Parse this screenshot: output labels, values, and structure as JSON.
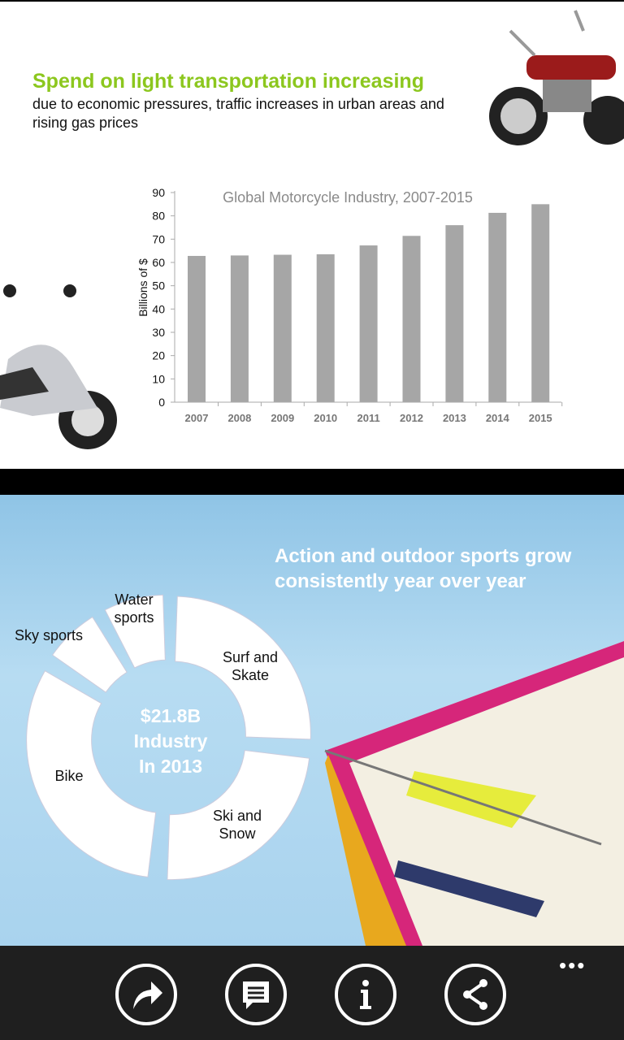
{
  "slide1": {
    "headline": "Spend on light transportation increasing",
    "subtitle": "due to economic pressures, traffic increases in urban areas and rising gas prices"
  },
  "chart_data": {
    "type": "bar",
    "title": "Global Motorcycle Industry, 2007-2015",
    "xlabel": "",
    "ylabel": "Billions of $",
    "ylim": [
      0,
      90
    ],
    "yticks": [
      0,
      10,
      20,
      30,
      40,
      50,
      60,
      70,
      80,
      90
    ],
    "categories": [
      "2007",
      "2008",
      "2009",
      "2010",
      "2011",
      "2012",
      "2013",
      "2014",
      "2015"
    ],
    "values": [
      62.8,
      63.0,
      63.3,
      63.5,
      67.3,
      71.4,
      76.0,
      81.3,
      85.0
    ],
    "bar_color": "#a6a6a6",
    "grid": false
  },
  "slide2": {
    "title_line1": "Action and outdoor sports grow",
    "title_line2": "consistently year over year",
    "center_line1": "$21.8B",
    "center_line2": "Industry",
    "center_line3": "In 2013",
    "segments": [
      {
        "label1": "Surf and",
        "label2": "Skate"
      },
      {
        "label1": "Ski and",
        "label2": "Snow"
      },
      {
        "label1": "Bike",
        "label2": ""
      },
      {
        "label1": "Sky sports",
        "label2": ""
      },
      {
        "label1": "Water",
        "label2": "sports"
      }
    ]
  },
  "appbar": {
    "buttons": [
      "forward-icon",
      "comment-icon",
      "info-icon",
      "share-icon"
    ],
    "more": "•••"
  }
}
